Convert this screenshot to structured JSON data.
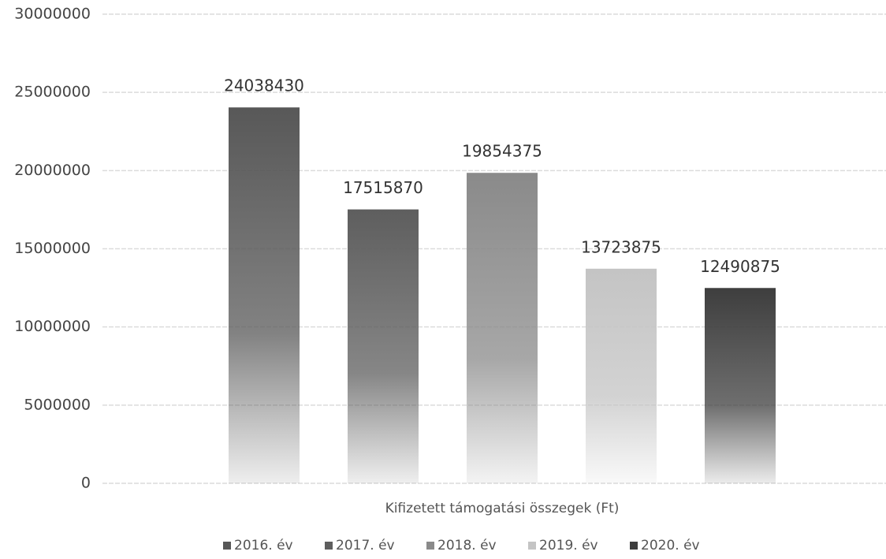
{
  "chart_data": {
    "type": "bar",
    "categories": [
      "Kifizetett támogatási összegek (Ft)"
    ],
    "series": [
      {
        "name": "2016. év",
        "color": "#585858",
        "values": [
          24038430
        ]
      },
      {
        "name": "2017. év",
        "color": "#5e5e5e",
        "values": [
          17515870
        ]
      },
      {
        "name": "2018. év",
        "color": "#8a8a8a",
        "values": [
          19854375
        ]
      },
      {
        "name": "2019. év",
        "color": "#c4c4c4",
        "values": [
          13723875
        ]
      },
      {
        "name": "2020. év",
        "color": "#3e3e3e",
        "values": [
          12490875
        ]
      }
    ],
    "ylim": [
      0,
      30000000
    ],
    "yticks": [
      0,
      5000000,
      10000000,
      15000000,
      20000000,
      25000000,
      30000000
    ],
    "grid": true,
    "legend": "bottom"
  }
}
